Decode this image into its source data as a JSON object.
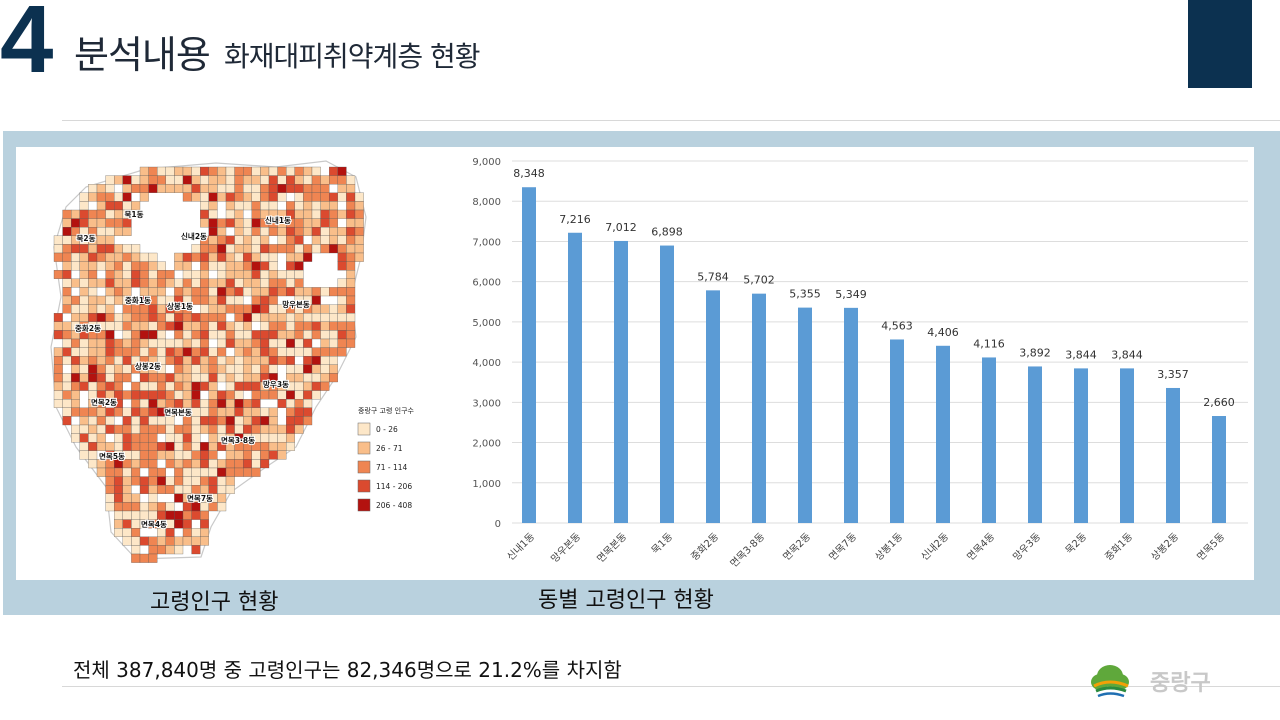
{
  "header": {
    "number": "4",
    "title": "분석내용",
    "subtitle": "화재대피취약계층 현황"
  },
  "map": {
    "caption": "고령인구 현황",
    "legend_title": "중랑구 고령 인구수",
    "legend": [
      {
        "label": "0 - 26",
        "color": "#fde7c8"
      },
      {
        "label": "26 - 71",
        "color": "#f9be8a"
      },
      {
        "label": "71 - 114",
        "color": "#ef8552"
      },
      {
        "label": "114 - 206",
        "color": "#db4a2f"
      },
      {
        "label": "206 - 408",
        "color": "#b3120f"
      }
    ],
    "district_labels": [
      "신내1동",
      "신내2동",
      "묵1동",
      "묵2동",
      "중화1동",
      "상봉1동",
      "중화2동",
      "망우본동",
      "상봉2동",
      "망우3동",
      "면목2동",
      "면목본동",
      "면목3·8동",
      "면목5동",
      "면목7동",
      "면목4동"
    ]
  },
  "chart_caption": "동별 고령인구 현황",
  "chart_data": {
    "type": "bar",
    "categories": [
      "신내1동",
      "망우본동",
      "면목본동",
      "묵1동",
      "중화2동",
      "면목3·8동",
      "면목2동",
      "면목7동",
      "상봉1동",
      "신내2동",
      "면목4동",
      "망우3동",
      "묵2동",
      "중화1동",
      "상봉2동",
      "면목5동"
    ],
    "values": [
      8348,
      7216,
      7012,
      6898,
      5784,
      5702,
      5355,
      5349,
      4563,
      4406,
      4116,
      3892,
      3844,
      3844,
      3357,
      2660
    ],
    "value_labels": [
      "8,348",
      "7,216",
      "7,012",
      "6,898",
      "5,784",
      "5,702",
      "5,355",
      "5,349",
      "4,563",
      "4,406",
      "4,116",
      "3,892",
      "3,844",
      "3,844",
      "3,357",
      "2,660"
    ],
    "y_ticks": [
      "0",
      "1,000",
      "2,000",
      "3,000",
      "4,000",
      "5,000",
      "6,000",
      "7,000",
      "8,000",
      "9,000"
    ],
    "ylim": [
      0,
      9000
    ],
    "grid": true,
    "bar_color": "#5b9bd5"
  },
  "footer": {
    "summary": "전체 387,840명 중 고령인구는 82,346명으로 21.2%를 차지함",
    "logo_text": "중랑구"
  }
}
